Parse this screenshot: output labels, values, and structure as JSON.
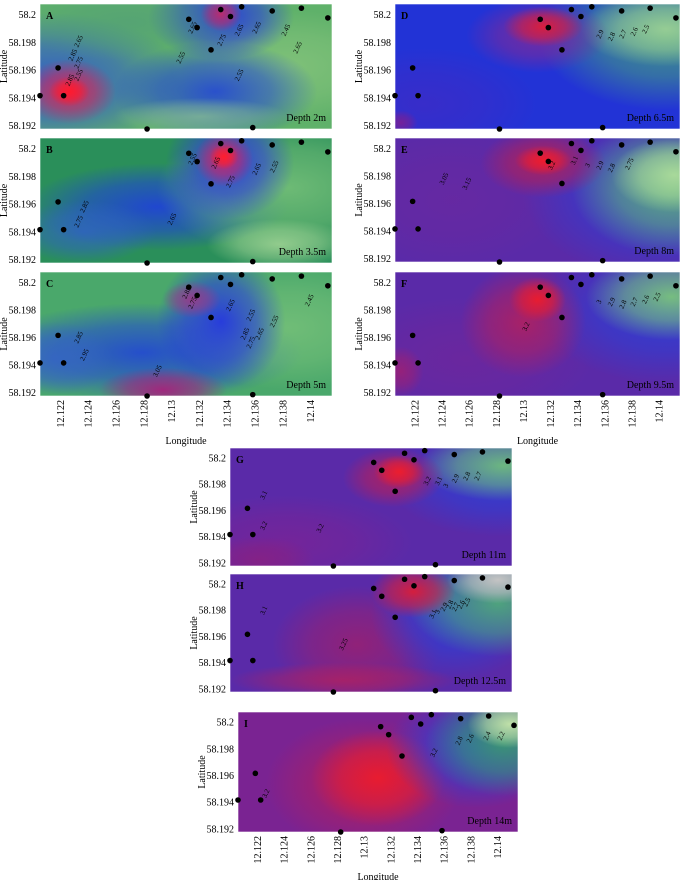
{
  "chart_data": {
    "type": "heatmap",
    "xlabel": "Longitude",
    "ylabel": "Latitude",
    "xlim": [
      12.1205,
      12.1415
    ],
    "ylim": [
      58.1918,
      58.2008
    ],
    "x_ticks": [
      "12.122",
      "12.124",
      "12.126",
      "12.128",
      "12.13",
      "12.132",
      "12.134",
      "12.136",
      "12.138",
      "12.14"
    ],
    "y_ticks": [
      "58.2",
      "58.198",
      "58.196",
      "58.194",
      "58.192"
    ],
    "stations": [
      {
        "lon": 12.1205,
        "lat": 58.1942
      },
      {
        "lon": 12.1218,
        "lat": 58.1962
      },
      {
        "lon": 12.1222,
        "lat": 58.1942
      },
      {
        "lon": 12.1282,
        "lat": 58.1918
      },
      {
        "lon": 12.1312,
        "lat": 58.1997
      },
      {
        "lon": 12.1318,
        "lat": 58.1991
      },
      {
        "lon": 12.1328,
        "lat": 58.1975
      },
      {
        "lon": 12.1335,
        "lat": 58.2004
      },
      {
        "lon": 12.1342,
        "lat": 58.1999
      },
      {
        "lon": 12.135,
        "lat": 58.2006
      },
      {
        "lon": 12.1358,
        "lat": 58.1919
      },
      {
        "lon": 12.1372,
        "lat": 58.2003
      },
      {
        "lon": 12.1393,
        "lat": 58.2005
      },
      {
        "lon": 12.1412,
        "lat": 58.1998
      }
    ],
    "panels": [
      {
        "id": "A",
        "depth": "Depth 2m",
        "contour_labels": [
          "2.65",
          "2.75",
          "2.55",
          "2.85",
          "2.85",
          "2.65",
          "2.75",
          "2.65",
          "2.65",
          "2.55",
          "2.45",
          "2.55",
          "2.65"
        ]
      },
      {
        "id": "B",
        "depth": "Depth 3.5m",
        "contour_labels": [
          "2.85",
          "2.75",
          "2.65",
          "2.55",
          "2.65",
          "2.75",
          "2.65",
          "2.55"
        ]
      },
      {
        "id": "C",
        "depth": "Depth 5m",
        "contour_labels": [
          "2.85",
          "2.95",
          "3.05",
          "2.85",
          "2.75",
          "2.65",
          "2.55",
          "2.45",
          "2.85",
          "2.75",
          "2.65",
          "2.55"
        ]
      },
      {
        "id": "D",
        "depth": "Depth 6.5m",
        "contour_labels": [
          "2.9",
          "2.8",
          "2.7",
          "2.6",
          "2.5"
        ]
      },
      {
        "id": "E",
        "depth": "Depth 8m",
        "contour_labels": [
          "3.05",
          "3.15",
          "3.2",
          "3.1",
          "3",
          "2.9",
          "2.8",
          "2.75"
        ]
      },
      {
        "id": "F",
        "depth": "Depth 9.5m",
        "contour_labels": [
          "3.2",
          "3",
          "2.9",
          "2.8",
          "2.7",
          "2.6",
          "2.5"
        ]
      },
      {
        "id": "G",
        "depth": "Depth 11m",
        "contour_labels": [
          "3.1",
          "3.2",
          "3.2",
          "3.2",
          "3.1",
          "3",
          "2.9",
          "2.8",
          "2.7"
        ]
      },
      {
        "id": "H",
        "depth": "Depth 12.5m",
        "contour_labels": [
          "3.1",
          "3.25",
          "3.1",
          "3",
          "2.9",
          "2.8",
          "2.7",
          "2.6",
          "2.5"
        ]
      },
      {
        "id": "I",
        "depth": "Depth 14m",
        "contour_labels": [
          "3.2",
          "3.2",
          "2.8",
          "2.6",
          "2.4",
          "2.2"
        ]
      }
    ]
  }
}
